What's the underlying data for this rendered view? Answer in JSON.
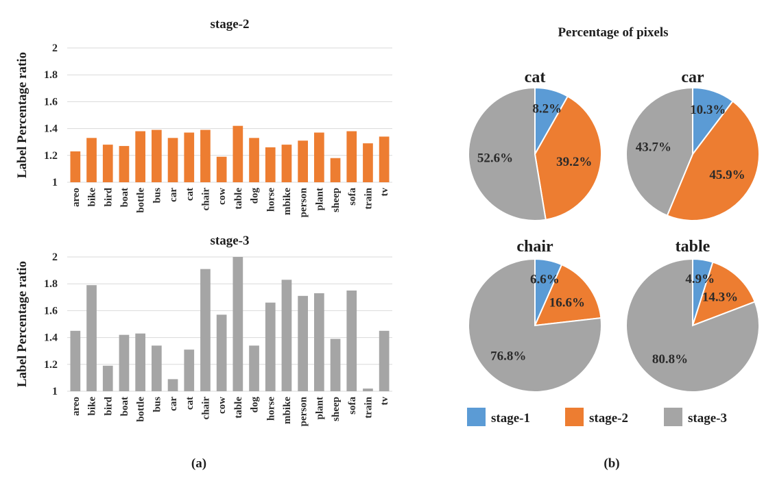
{
  "colors": {
    "stage1": "#5b9bd5",
    "stage2": "#ed7d31",
    "stage3": "#a5a5a5"
  },
  "panel_labels": [
    "(a)",
    "(b)"
  ],
  "pie_title": "Percentage of pixels",
  "legend": [
    "stage-1",
    "stage-2",
    "stage-3"
  ],
  "chart_data": [
    {
      "type": "bar",
      "title": "stage-2",
      "ylabel": "Label Percentage ratio",
      "ylim": [
        1,
        2
      ],
      "yticks": [
        "1",
        "1.2",
        "1.4",
        "1.6",
        "1.8",
        "2"
      ],
      "grid": true,
      "color": "#ed7d31",
      "categories": [
        "areo",
        "bike",
        "bird",
        "boat",
        "bottle",
        "bus",
        "car",
        "cat",
        "chair",
        "cow",
        "table",
        "dog",
        "horse",
        "mbike",
        "person",
        "plant",
        "sheep",
        "sofa",
        "train",
        "tv"
      ],
      "values": [
        1.23,
        1.33,
        1.28,
        1.27,
        1.38,
        1.39,
        1.33,
        1.37,
        1.39,
        1.19,
        1.42,
        1.33,
        1.26,
        1.28,
        1.31,
        1.37,
        1.18,
        1.38,
        1.29,
        1.34
      ]
    },
    {
      "type": "bar",
      "title": "stage-3",
      "ylabel": "Label Percentage ratio",
      "ylim": [
        1,
        2
      ],
      "yticks": [
        "1",
        "1.2",
        "1.4",
        "1.6",
        "1.8",
        "2"
      ],
      "grid": true,
      "color": "#a5a5a5",
      "categories": [
        "areo",
        "bike",
        "bird",
        "boat",
        "bottle",
        "bus",
        "car",
        "cat",
        "chair",
        "cow",
        "table",
        "dog",
        "horse",
        "mbike",
        "person",
        "plant",
        "sheep",
        "sofa",
        "train",
        "tv"
      ],
      "values": [
        1.45,
        1.79,
        1.19,
        1.42,
        1.43,
        1.34,
        1.09,
        1.31,
        1.91,
        1.57,
        2.0,
        1.34,
        1.66,
        1.83,
        1.71,
        1.73,
        1.39,
        1.75,
        1.02,
        1.45
      ]
    },
    {
      "type": "pie",
      "title": "cat",
      "labels": [
        "stage-1",
        "stage-2",
        "stage-3"
      ],
      "values": [
        8.2,
        39.2,
        52.6
      ],
      "value_labels": [
        "8.2%",
        "39.2%",
        "52.6%"
      ]
    },
    {
      "type": "pie",
      "title": "car",
      "labels": [
        "stage-1",
        "stage-2",
        "stage-3"
      ],
      "values": [
        10.3,
        45.9,
        43.7
      ],
      "value_labels": [
        "10.3%",
        "45.9%",
        "43.7%"
      ]
    },
    {
      "type": "pie",
      "title": "chair",
      "labels": [
        "stage-1",
        "stage-2",
        "stage-3"
      ],
      "values": [
        6.6,
        16.6,
        76.8
      ],
      "value_labels": [
        "6.6%",
        "16.6%",
        "76.8%"
      ]
    },
    {
      "type": "pie",
      "title": "table",
      "labels": [
        "stage-1",
        "stage-2",
        "stage-3"
      ],
      "values": [
        4.9,
        14.3,
        80.8
      ],
      "value_labels": [
        "4.9%",
        "14.3%",
        "80.8%"
      ]
    }
  ]
}
